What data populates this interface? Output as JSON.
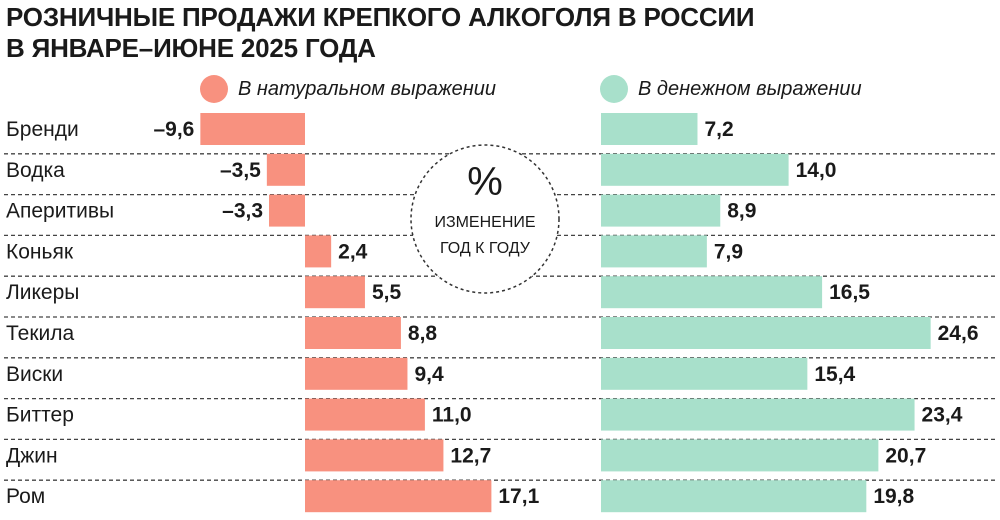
{
  "title": {
    "line1": "РОЗНИЧНЫЕ ПРОДАЖИ КРЕПКОГО АЛКОГОЛЯ В РОССИИ",
    "line2": "В ЯНВАРЕ–ИЮНЕ 2025 ГОДА"
  },
  "legend": {
    "natural": "В натуральном выражении",
    "money": "В денежном выражении"
  },
  "circle": {
    "symbol": "%",
    "line1": "ИЗМЕНЕНИЕ",
    "line2": "ГОД К ГОДУ"
  },
  "colors": {
    "natural": "#f8917f",
    "money": "#a8e0cb",
    "dash": "#444444"
  },
  "chart_data": {
    "type": "bar",
    "categories": [
      "Бренди",
      "Водка",
      "Аперитивы",
      "Коньяк",
      "Ликеры",
      "Текила",
      "Виски",
      "Биттер",
      "Джин",
      "Ром"
    ],
    "series": [
      {
        "name": "В натуральном выражении",
        "values": [
          -9.6,
          -3.5,
          -3.3,
          2.4,
          5.5,
          8.8,
          9.4,
          11.0,
          12.7,
          17.1
        ],
        "labels": [
          "–9,6",
          "–3,5",
          "–3,3",
          "2,4",
          "5,5",
          "8,8",
          "9,4",
          "11,0",
          "12,7",
          "17,1"
        ]
      },
      {
        "name": "В денежном выражении",
        "values": [
          7.2,
          14.0,
          8.9,
          7.9,
          16.5,
          24.6,
          15.4,
          23.4,
          20.7,
          19.8
        ],
        "labels": [
          "7,2",
          "14,0",
          "8,9",
          "7,9",
          "16,5",
          "24,6",
          "15,4",
          "23,4",
          "20,7",
          "19,8"
        ]
      }
    ],
    "unit": "%"
  }
}
